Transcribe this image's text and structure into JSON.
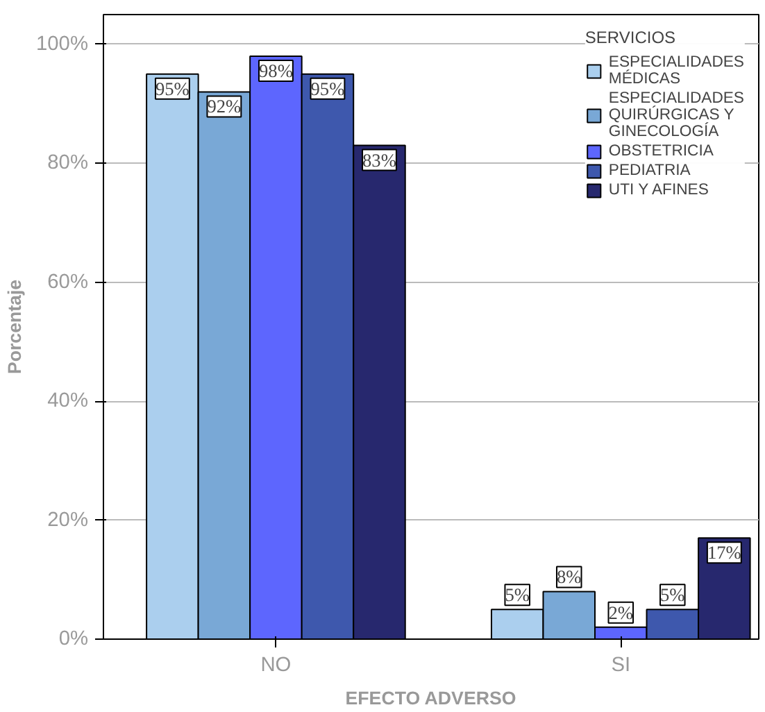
{
  "chart_data": {
    "type": "bar",
    "xlabel": "EFECTO ADVERSO",
    "ylabel": "Porcentaje",
    "legend_title": "SERVICIOS",
    "categories": [
      "NO",
      "SI"
    ],
    "series": [
      {
        "name": "ESPECIALIDADES MÉDICAS",
        "color": "#abcfee",
        "values": [
          95,
          5
        ],
        "value_labels": [
          "95%",
          "5%"
        ]
      },
      {
        "name": "ESPECIALIDADES QUIRÚRGICAS Y GINECOLOGÍA",
        "color": "#79a8d6",
        "values": [
          92,
          8
        ],
        "value_labels": [
          "92%",
          "8%"
        ]
      },
      {
        "name": "OBSTETRICIA",
        "color": "#5d66fe",
        "values": [
          98,
          2
        ],
        "value_labels": [
          "98%",
          "2%"
        ]
      },
      {
        "name": "PEDIATRIA",
        "color": "#3e58ad",
        "values": [
          95,
          5
        ],
        "value_labels": [
          "95%",
          "5%"
        ]
      },
      {
        "name": "UTI Y AFINES",
        "color": "#27286e",
        "values": [
          83,
          17
        ],
        "value_labels": [
          "83%",
          "17%"
        ]
      }
    ],
    "ylim": [
      0,
      105
    ],
    "yticks": [
      {
        "value": 0,
        "label": "0%"
      },
      {
        "value": 20,
        "label": "20%"
      },
      {
        "value": 40,
        "label": "40%"
      },
      {
        "value": 60,
        "label": "60%"
      },
      {
        "value": 80,
        "label": "80%"
      },
      {
        "value": 100,
        "label": "100%"
      }
    ],
    "grid": "y",
    "legend": "top right"
  }
}
